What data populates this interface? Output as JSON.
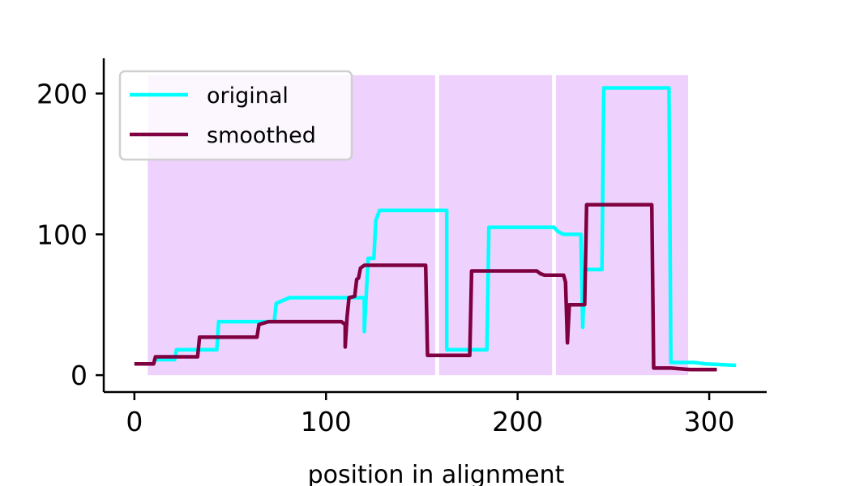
{
  "chart_data": {
    "type": "line",
    "title": "",
    "xlabel": "position in alignment",
    "ylabel": "",
    "xlim": [
      -16,
      330
    ],
    "ylim": [
      -12,
      225
    ],
    "x_ticks": [
      0,
      100,
      200,
      300
    ],
    "y_ticks": [
      0,
      100,
      200
    ],
    "x_tick_labels": [
      "0",
      "100",
      "200",
      "300"
    ],
    "y_tick_labels": [
      "0",
      "100",
      "200"
    ],
    "grid": false,
    "legend_position": "top-left",
    "shaded_regions": [
      {
        "x_start": 7,
        "x_end": 157,
        "y_top": 213
      },
      {
        "x_start": 159,
        "x_end": 218,
        "y_top": 213
      },
      {
        "x_start": 220,
        "x_end": 289,
        "y_top": 213
      }
    ],
    "shade_color": "#eed1fc",
    "series": [
      {
        "name": "original",
        "color": "#00ffff",
        "points": [
          [
            0,
            8
          ],
          [
            10,
            8
          ],
          [
            11,
            11
          ],
          [
            21,
            11
          ],
          [
            22,
            18
          ],
          [
            43,
            18
          ],
          [
            44,
            38
          ],
          [
            73,
            38
          ],
          [
            74,
            51
          ],
          [
            81,
            55
          ],
          [
            120,
            55
          ],
          [
            120,
            31
          ],
          [
            122,
            83
          ],
          [
            125,
            83
          ],
          [
            126,
            110
          ],
          [
            128,
            117
          ],
          [
            156,
            117
          ],
          [
            163,
            117
          ],
          [
            163,
            18
          ],
          [
            184,
            18
          ],
          [
            185,
            105
          ],
          [
            219,
            105
          ],
          [
            221,
            102
          ],
          [
            224,
            100
          ],
          [
            233,
            100
          ],
          [
            234,
            34
          ],
          [
            235,
            75
          ],
          [
            244,
            75
          ],
          [
            245,
            204
          ],
          [
            279,
            204
          ],
          [
            280,
            9
          ],
          [
            292,
            9
          ],
          [
            298,
            8
          ],
          [
            314,
            7
          ]
        ]
      },
      {
        "name": "smoothed",
        "color": "#7f0040",
        "points": [
          [
            0,
            8
          ],
          [
            10,
            8
          ],
          [
            11,
            13
          ],
          [
            33,
            13
          ],
          [
            34,
            27
          ],
          [
            64,
            27
          ],
          [
            65,
            36
          ],
          [
            70,
            38
          ],
          [
            108,
            38
          ],
          [
            110,
            36
          ],
          [
            110,
            20
          ],
          [
            111,
            41
          ],
          [
            112,
            55
          ],
          [
            115,
            56
          ],
          [
            116,
            68
          ],
          [
            117,
            69
          ],
          [
            118,
            76
          ],
          [
            120,
            78
          ],
          [
            152,
            78
          ],
          [
            153,
            14
          ],
          [
            175,
            14
          ],
          [
            176,
            74
          ],
          [
            210,
            74
          ],
          [
            212,
            72
          ],
          [
            214,
            71
          ],
          [
            224,
            71
          ],
          [
            225,
            66
          ],
          [
            226,
            23
          ],
          [
            227,
            50
          ],
          [
            235,
            50
          ],
          [
            236,
            121
          ],
          [
            270,
            121
          ],
          [
            271,
            5
          ],
          [
            280,
            5
          ],
          [
            290,
            4
          ],
          [
            304,
            4
          ]
        ]
      }
    ]
  }
}
